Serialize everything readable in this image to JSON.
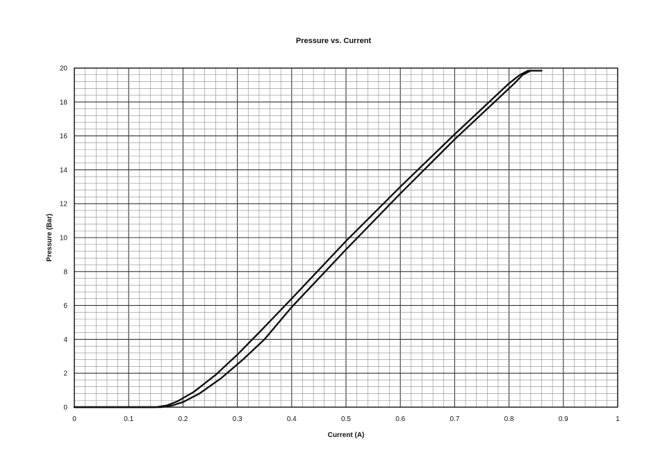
{
  "chart_data": {
    "type": "line",
    "title": "Pressure vs. Current",
    "xlabel": "Current (A)",
    "ylabel": "Pressure (Bar)",
    "xlim": [
      0,
      1
    ],
    "ylim": [
      0,
      20
    ],
    "x_ticks": [
      "0",
      "0.1",
      "0.2",
      "0.3",
      "0.4",
      "0.5",
      "0.6",
      "0.7",
      "0.8",
      "0.9",
      "1"
    ],
    "y_ticks": [
      "0",
      "2",
      "4",
      "6",
      "8",
      "10",
      "12",
      "14",
      "16",
      "18",
      "20"
    ],
    "grid": true,
    "legend": "none",
    "series": [
      {
        "color": "#111111",
        "x": [
          0,
          0.15,
          0.17,
          0.19,
          0.22,
          0.26,
          0.3,
          0.34,
          0.4,
          0.5,
          0.6,
          0.7,
          0.8,
          0.82,
          0.835,
          0.86
        ],
        "y": [
          0,
          0,
          0.1,
          0.35,
          0.9,
          1.9,
          3.1,
          4.4,
          6.4,
          9.8,
          13.0,
          16.1,
          19.1,
          19.6,
          19.85,
          19.85
        ]
      },
      {
        "color": "#111111",
        "x": [
          0,
          0.16,
          0.18,
          0.2,
          0.23,
          0.27,
          0.31,
          0.35,
          0.4,
          0.5,
          0.6,
          0.7,
          0.81,
          0.825,
          0.84,
          0.86
        ],
        "y": [
          0,
          0,
          0.1,
          0.3,
          0.8,
          1.7,
          2.8,
          4.0,
          5.9,
          9.3,
          12.6,
          15.8,
          19.1,
          19.6,
          19.85,
          19.85
        ]
      }
    ]
  }
}
